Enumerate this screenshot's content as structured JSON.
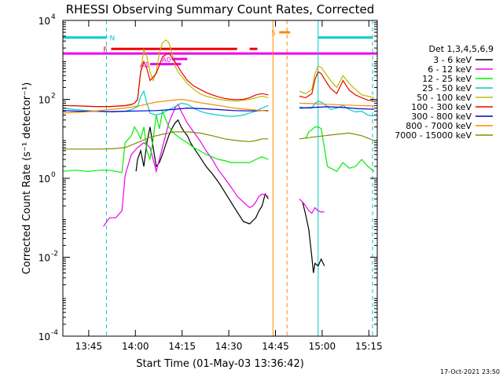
{
  "chart_data": {
    "type": "line",
    "title": "RHESSI Observing Summary Count Rates, Corrected",
    "xlabel": "Start Time (01-May-03 13:36:42)",
    "ylabel": "Corrected Count Rate (s⁻¹ detector⁻¹)",
    "x_unit": "minutes after 13:36:42",
    "xlim": [
      0,
      101
    ],
    "ylim": [
      0.0001,
      10000
    ],
    "y_scale": "log",
    "x_ticks": [
      {
        "x": 8.3,
        "label": "13:45"
      },
      {
        "x": 23.3,
        "label": "14:00"
      },
      {
        "x": 38.3,
        "label": "14:15"
      },
      {
        "x": 53.3,
        "label": "14:30"
      },
      {
        "x": 68.3,
        "label": "14:45"
      },
      {
        "x": 83.3,
        "label": "15:00"
      },
      {
        "x": 98.3,
        "label": "15:15"
      }
    ],
    "y_ticks": [
      {
        "y": 10000,
        "mant": "10",
        "exp": "4"
      },
      {
        "y": 100,
        "mant": "10",
        "exp": "2"
      },
      {
        "y": 1,
        "mant": "10",
        "exp": "0"
      },
      {
        "y": 0.01,
        "mant": "10",
        "exp": "-2"
      },
      {
        "y": 0.0001,
        "mant": "10",
        "exp": "-4"
      }
    ],
    "legend_title": "Det 1,3,4,5,6,9",
    "legend_position": "right",
    "series": [
      {
        "name": "3 - 6 keV",
        "color": "#000000",
        "segments": [
          {
            "x": [
              23.5,
              24,
              25,
              26,
              27,
              28,
              29,
              30,
              31,
              32,
              33,
              34,
              35,
              36,
              37,
              38,
              39,
              40,
              41,
              42,
              44,
              46,
              48,
              50,
              52,
              54,
              56,
              58,
              60,
              62,
              63,
              64,
              65,
              66
            ],
            "y": [
              1.5,
              3,
              5,
              2,
              8,
              20,
              6,
              2,
              2.5,
              4,
              7,
              12,
              18,
              25,
              30,
              20,
              15,
              12,
              8,
              6,
              3.5,
              2,
              1.3,
              0.8,
              0.45,
              0.25,
              0.14,
              0.08,
              0.07,
              0.1,
              0.15,
              0.2,
              0.4,
              0.3
            ]
          },
          {
            "x": [
              77,
              78,
              79,
              80,
              80.5,
              81,
              82,
              83,
              84
            ],
            "y": [
              0.25,
              0.12,
              0.05,
              0.01,
              0.004,
              0.007,
              0.006,
              0.009,
              0.006
            ]
          }
        ]
      },
      {
        "name": "6 - 12 keV",
        "color": "#ee00ee",
        "segments": [
          {
            "x": [
              13,
              15,
              17,
              19,
              20,
              22,
              24,
              26,
              28,
              30,
              32,
              34,
              36,
              37,
              38,
              39,
              40,
              42,
              44,
              46,
              48,
              50,
              52,
              54,
              56,
              58,
              60,
              61,
              62,
              63,
              64,
              66
            ],
            "y": [
              0.06,
              0.1,
              0.1,
              0.15,
              1.2,
              4,
              6,
              8,
              6,
              1.5,
              6,
              25,
              60,
              75,
              50,
              35,
              25,
              15,
              9,
              5,
              3,
              1.6,
              1,
              0.6,
              0.35,
              0.25,
              0.18,
              0.2,
              0.25,
              0.35,
              0.4,
              0.35
            ]
          },
          {
            "x": [
              76,
              77,
              78,
              79,
              80,
              81,
              82,
              83,
              84
            ],
            "y": [
              0.3,
              0.25,
              0.2,
              0.15,
              0.13,
              0.18,
              0.15,
              0.14,
              0.14
            ]
          }
        ]
      },
      {
        "name": "12 - 25 keV",
        "color": "#00ee00",
        "segments": [
          {
            "x": [
              0,
              4,
              8,
              12,
              15,
              17,
              19,
              20,
              22,
              23,
              24,
              25,
              26,
              27,
              28,
              29,
              30,
              31,
              32,
              34,
              36,
              38,
              40,
              42,
              44,
              46,
              48,
              50,
              52,
              54,
              56,
              58,
              60,
              62,
              64,
              66
            ],
            "y": [
              1.5,
              1.6,
              1.5,
              1.6,
              1.6,
              1.5,
              1.4,
              8,
              12,
              20,
              15,
              10,
              20,
              5,
              3,
              10,
              40,
              18,
              50,
              20,
              13,
              10,
              8,
              6,
              5,
              4,
              3.5,
              3,
              2.8,
              2.5,
              2.5,
              2.5,
              2.5,
              3,
              3.5,
              3
            ]
          },
          {
            "x": [
              78,
              79,
              80,
              81,
              82,
              83,
              85,
              88,
              90,
              92,
              94,
              96,
              98,
              100
            ],
            "y": [
              10,
              15,
              17,
              20,
              20,
              18,
              2,
              1.5,
              2.5,
              1.8,
              2,
              3,
              2,
              1.5
            ]
          }
        ]
      },
      {
        "name": "25 - 50 keV",
        "color": "#00cccc",
        "segments": [
          {
            "x": [
              0,
              4,
              8,
              12,
              16,
              20,
              22,
              24,
              25,
              26,
              27,
              28,
              30,
              32,
              34,
              36,
              38,
              40,
              42,
              44,
              46,
              48,
              50,
              52,
              54,
              56,
              58,
              60,
              62,
              64,
              66
            ],
            "y": [
              60,
              55,
              52,
              50,
              48,
              50,
              55,
              65,
              120,
              160,
              80,
              45,
              40,
              45,
              55,
              65,
              80,
              75,
              60,
              50,
              45,
              42,
              40,
              38,
              37,
              38,
              40,
              45,
              50,
              60,
              70
            ]
          },
          {
            "x": [
              76,
              78,
              80,
              81,
              82,
              83,
              84,
              85,
              86,
              88,
              90,
              92,
              94,
              96,
              98,
              100
            ],
            "y": [
              65,
              60,
              60,
              80,
              90,
              85,
              75,
              65,
              55,
              60,
              70,
              55,
              48,
              50,
              40,
              38
            ]
          }
        ]
      },
      {
        "name": "50 - 100 keV",
        "color": "#bbbb00",
        "segments": [
          {
            "x": [
              0,
              5,
              10,
              15,
              20,
              22,
              23,
              24,
              25,
              26,
              27,
              28,
              29,
              30,
              31,
              32,
              33,
              34,
              35,
              36,
              37,
              38,
              40,
              42,
              44,
              46,
              48,
              50,
              52,
              54,
              56,
              58,
              60,
              62,
              64,
              66
            ],
            "y": [
              70,
              68,
              66,
              65,
              68,
              72,
              80,
              95,
              500,
              1800,
              1200,
              500,
              300,
              500,
              1500,
              2700,
              3200,
              2800,
              1500,
              700,
              500,
              400,
              250,
              180,
              140,
              120,
              110,
              100,
              95,
              92,
              90,
              95,
              100,
              110,
              120,
              110
            ]
          },
          {
            "x": [
              76,
              78,
              80,
              81,
              82,
              83,
              84,
              86,
              88,
              90,
              92,
              94,
              96,
              98,
              100
            ],
            "y": [
              160,
              140,
              180,
              450,
              700,
              650,
              500,
              300,
              200,
              400,
              250,
              180,
              130,
              120,
              110
            ]
          }
        ]
      },
      {
        "name": "100 - 300 keV",
        "color": "#ee0000",
        "segments": [
          {
            "x": [
              0,
              5,
              10,
              15,
              20,
              22,
              23,
              24,
              25,
              26,
              27,
              28,
              30,
              32,
              34,
              36,
              38,
              40,
              42,
              44,
              46,
              48,
              50,
              52,
              54,
              56,
              58,
              60,
              62,
              64,
              66
            ],
            "y": [
              70,
              68,
              66,
              66,
              70,
              75,
              80,
              100,
              500,
              900,
              600,
              300,
              450,
              1200,
              1500,
              900,
              500,
              300,
              220,
              180,
              150,
              130,
              115,
              105,
              100,
              98,
              100,
              110,
              130,
              140,
              130
            ]
          },
          {
            "x": [
              76,
              78,
              80,
              81,
              82,
              83,
              84,
              85,
              86,
              88,
              90,
              92,
              94,
              96,
              98,
              100
            ],
            "y": [
              120,
              110,
              140,
              320,
              500,
              450,
              330,
              250,
              190,
              140,
              300,
              170,
              130,
              110,
              95,
              90
            ]
          }
        ]
      },
      {
        "name": "300 - 800 keV",
        "color": "#0000cc",
        "segments": [
          {
            "x": [
              0,
              5,
              10,
              15,
              20,
              25,
              30,
              35,
              40,
              45,
              50,
              55,
              60,
              64,
              66
            ],
            "y": [
              52,
              50,
              50,
              49,
              50,
              51,
              52,
              55,
              60,
              58,
              55,
              52,
              51,
              52,
              52
            ]
          },
          {
            "x": [
              76,
              80,
              85,
              90,
              95,
              100
            ],
            "y": [
              60,
              62,
              65,
              62,
              58,
              56
            ]
          }
        ]
      },
      {
        "name": "800 - 7000 keV",
        "color": "#ff8800",
        "segments": [
          {
            "x": [
              0,
              5,
              10,
              15,
              20,
              25,
              30,
              35,
              38,
              40,
              45,
              50,
              55,
              60,
              64,
              66
            ],
            "y": [
              45,
              47,
              50,
              55,
              60,
              70,
              85,
              95,
              100,
              95,
              80,
              70,
              60,
              55,
              52,
              50
            ]
          },
          {
            "x": [
              76,
              80,
              85,
              90,
              95,
              100
            ],
            "y": [
              80,
              78,
              75,
              72,
              70,
              68
            ]
          }
        ]
      },
      {
        "name": "7000 - 15000 keV",
        "color": "#888800",
        "segments": [
          {
            "x": [
              0,
              4,
              8,
              12,
              16,
              20,
              24,
              28,
              32,
              36,
              40,
              44,
              48,
              52,
              56,
              60,
              62,
              64,
              66
            ],
            "y": [
              5.5,
              5.5,
              5.5,
              5.5,
              5.6,
              6,
              8,
              11,
              13,
              15,
              15,
              14,
              12,
              10,
              9,
              8.5,
              9,
              10,
              10
            ]
          },
          {
            "x": [
              76,
              80,
              84,
              88,
              92,
              96,
              100
            ],
            "y": [
              10,
              11,
              12,
              13,
              14,
              12,
              9
            ]
          }
        ]
      }
    ],
    "vertical_lines": [
      {
        "x": 0,
        "style": "solid",
        "color": "#00cccc"
      },
      {
        "x": 14,
        "style": "dashed",
        "color": "#00cccc"
      },
      {
        "x": 82,
        "style": "solid",
        "color": "#00cccc"
      },
      {
        "x": 99.5,
        "style": "dashed",
        "color": "#00cccc"
      },
      {
        "x": 67.5,
        "style": "solid",
        "color": "#ff8800"
      },
      {
        "x": 72,
        "style": "dashed",
        "color": "#ff8800"
      }
    ],
    "flag_bars": [
      {
        "label": "N",
        "color": "#00cccc",
        "y": 3700,
        "spans": [
          [
            0,
            14
          ],
          [
            82,
            99.5
          ]
        ]
      },
      {
        "label": "F",
        "color": "#ee0000",
        "y": 1900,
        "spans": [
          [
            15.5,
            56
          ],
          [
            60,
            62.5
          ]
        ]
      },
      {
        "label": "",
        "color": "#ee00ee",
        "y": 1450,
        "spans": [
          [
            0,
            101
          ]
        ]
      },
      {
        "label": "S",
        "color": "#ff8800",
        "y": 5000,
        "spans": [
          [
            69.5,
            73
          ]
        ]
      },
      {
        "label": "A0",
        "color": "#ee00ee",
        "y": 1050,
        "spans": [
          [
            35,
            40
          ]
        ]
      },
      {
        "label": "A1",
        "color": "#ee00ee",
        "y": 780,
        "spans": [
          [
            28,
            38
          ]
        ]
      }
    ]
  },
  "footer": {
    "timestamp": "17-Oct-2021 23:50"
  }
}
